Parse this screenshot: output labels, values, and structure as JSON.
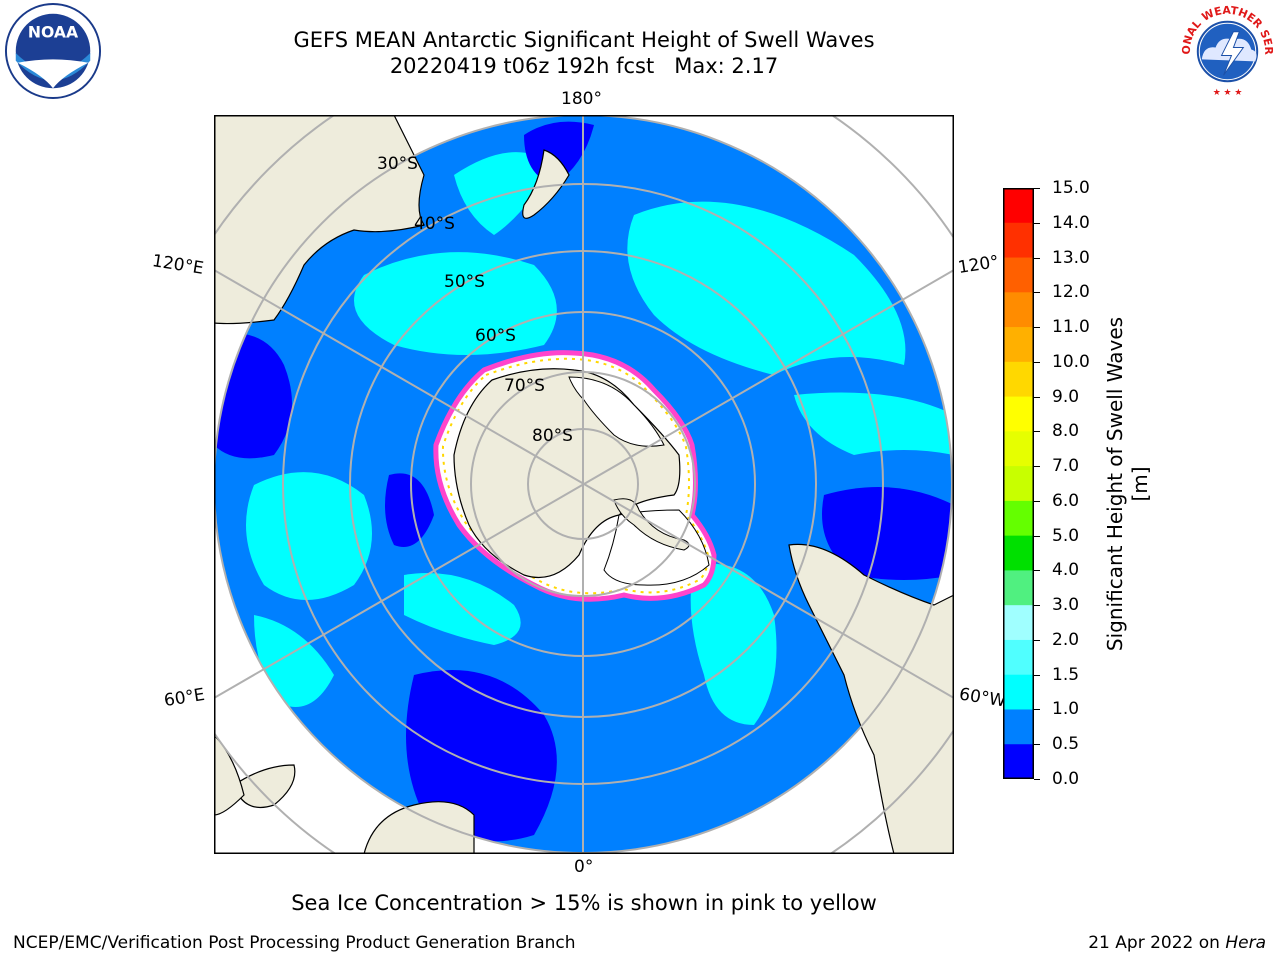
{
  "title": {
    "line1": "GEFS MEAN Antarctic Significant Height of Swell Waves",
    "run": "20220419 t06z 192h fcst",
    "max": "Max: 2.17"
  },
  "logos": {
    "left": {
      "name": "NOAA",
      "icon": "noaa-logo"
    },
    "right": {
      "name": "NATIONAL WEATHER SERVICE",
      "icon": "nws-logo"
    }
  },
  "map": {
    "projection": "south-polar-stereographic",
    "lon_labels": {
      "top": "180°",
      "bottom": "0°",
      "upper_left": "120°E",
      "upper_right": "120°",
      "lower_left": "60°E",
      "lower_right": "60°W"
    },
    "lat_labels": [
      "30°S",
      "40°S",
      "50°S",
      "60°S",
      "70°S",
      "80°S"
    ]
  },
  "colorbar": {
    "label": "Significant Height of Swell Waves [m]",
    "ticks": [
      "15.0",
      "14.0",
      "13.0",
      "12.0",
      "11.0",
      "10.0",
      "9.0",
      "8.0",
      "7.0",
      "6.0",
      "5.0",
      "4.0",
      "3.0",
      "2.0",
      "1.5",
      "1.0",
      "0.5",
      "0.0"
    ],
    "colors": [
      "#ff0000",
      "#ff3000",
      "#ff6000",
      "#ff8c00",
      "#ffb000",
      "#ffd800",
      "#ffff00",
      "#e6ff00",
      "#c8ff00",
      "#64ff00",
      "#00e000",
      "#50f080",
      "#a0ffff",
      "#50ffff",
      "#00ffff",
      "#0080ff",
      "#0000ff"
    ]
  },
  "bottom_note": "Sea Ice Concentration > 15% is shown in pink to yellow",
  "footer": {
    "left": "NCEP/EMC/Verification Post Processing Product Generation Branch",
    "right_date": "21 Apr 2022 on ",
    "right_host": "Hera"
  }
}
